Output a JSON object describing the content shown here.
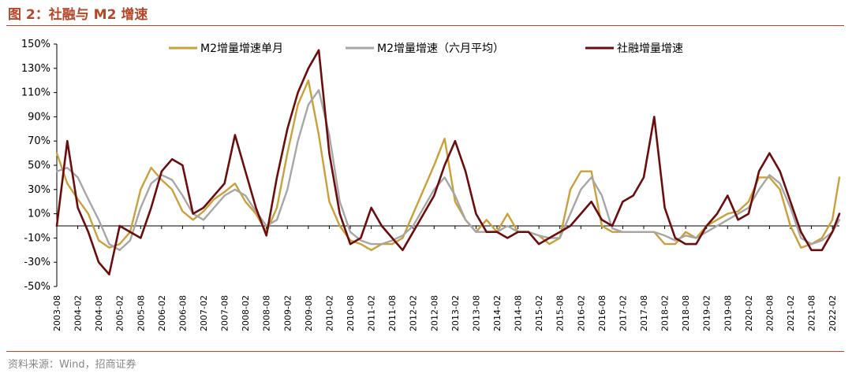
{
  "header": {
    "title": "图 2：社融与 M2 增速"
  },
  "footer": {
    "source": "资料来源：Wind，招商证券"
  },
  "chart_data": {
    "type": "line",
    "title": "",
    "xlabel": "",
    "ylabel": "",
    "ylim": [
      -50,
      150
    ],
    "yticks": [
      "150%",
      "130%",
      "110%",
      "90%",
      "70%",
      "50%",
      "30%",
      "10%",
      "-10%",
      "-30%",
      "-50%"
    ],
    "legend_position": "top",
    "grid": false,
    "xticks": [
      "2003-08",
      "2004-02",
      "2004-08",
      "2005-02",
      "2005-08",
      "2006-02",
      "2006-08",
      "2007-02",
      "2007-08",
      "2008-02",
      "2008-08",
      "2009-02",
      "2009-08",
      "2010-02",
      "2010-08",
      "2011-02",
      "2011-08",
      "2012-02",
      "2012-08",
      "2013-02",
      "2013-08",
      "2014-02",
      "2014-08",
      "2015-02",
      "2015-08",
      "2016-02",
      "2016-08",
      "2017-02",
      "2017-08",
      "2018-02",
      "2018-08",
      "2019-02",
      "2019-08",
      "2020-02",
      "2020-08",
      "2021-02",
      "2021-08",
      "2022-02"
    ],
    "x": [
      "2003-08",
      "2003-11",
      "2004-02",
      "2004-05",
      "2004-08",
      "2004-11",
      "2005-02",
      "2005-05",
      "2005-08",
      "2005-11",
      "2006-02",
      "2006-05",
      "2006-08",
      "2006-11",
      "2007-02",
      "2007-05",
      "2007-08",
      "2007-11",
      "2008-02",
      "2008-05",
      "2008-08",
      "2008-11",
      "2009-02",
      "2009-05",
      "2009-08",
      "2009-11",
      "2010-02",
      "2010-05",
      "2010-08",
      "2010-11",
      "2011-02",
      "2011-05",
      "2011-08",
      "2011-11",
      "2012-02",
      "2012-05",
      "2012-08",
      "2012-11",
      "2013-02",
      "2013-05",
      "2013-08",
      "2013-11",
      "2014-02",
      "2014-05",
      "2014-08",
      "2014-11",
      "2015-02",
      "2015-05",
      "2015-08",
      "2015-11",
      "2016-02",
      "2016-05",
      "2016-08",
      "2016-11",
      "2017-02",
      "2017-05",
      "2017-08",
      "2017-11",
      "2018-02",
      "2018-05",
      "2018-08",
      "2018-11",
      "2019-02",
      "2019-05",
      "2019-08",
      "2019-11",
      "2020-02",
      "2020-05",
      "2020-08",
      "2020-11",
      "2021-02",
      "2021-05",
      "2021-08",
      "2021-11",
      "2022-02",
      "2022-04"
    ],
    "series": [
      {
        "name": "M2增量增速单月",
        "color": "#c9a03a",
        "values": [
          60,
          35,
          22,
          10,
          -12,
          -18,
          -15,
          -5,
          30,
          48,
          38,
          30,
          12,
          5,
          12,
          22,
          28,
          35,
          20,
          10,
          -5,
          15,
          60,
          100,
          120,
          75,
          20,
          0,
          -12,
          -15,
          -20,
          -15,
          -15,
          -10,
          10,
          30,
          50,
          72,
          20,
          5,
          -5,
          5,
          -5,
          10,
          -5,
          -5,
          -8,
          -15,
          -10,
          30,
          45,
          45,
          0,
          -5,
          -5,
          -5,
          -5,
          -5,
          -15,
          -15,
          -5,
          -10,
          0,
          5,
          10,
          12,
          20,
          40,
          40,
          30,
          0,
          -18,
          -15,
          -10,
          5,
          40
        ]
      },
      {
        "name": "M2增量增速（六月平均）",
        "color": "#a6a6a6",
        "values": [
          45,
          48,
          40,
          22,
          5,
          -15,
          -20,
          -12,
          15,
          35,
          42,
          38,
          25,
          10,
          5,
          15,
          25,
          30,
          25,
          12,
          0,
          5,
          30,
          70,
          100,
          112,
          75,
          20,
          -5,
          -12,
          -15,
          -15,
          -12,
          -8,
          0,
          15,
          30,
          40,
          25,
          5,
          -5,
          -5,
          -5,
          0,
          -5,
          -5,
          -8,
          -10,
          -10,
          10,
          30,
          40,
          25,
          -2,
          -5,
          -5,
          -5,
          -5,
          -8,
          -12,
          -8,
          -10,
          -5,
          0,
          5,
          10,
          15,
          30,
          42,
          35,
          15,
          -10,
          -15,
          -12,
          -5,
          5
        ]
      },
      {
        "name": "社融增量增速",
        "color": "#6b0d0d",
        "values": [
          0,
          70,
          15,
          -5,
          -30,
          -40,
          0,
          -5,
          -10,
          15,
          45,
          55,
          50,
          10,
          15,
          25,
          35,
          75,
          45,
          15,
          -8,
          40,
          80,
          110,
          130,
          145,
          60,
          10,
          -15,
          -10,
          15,
          0,
          -10,
          -20,
          -5,
          10,
          25,
          50,
          70,
          45,
          10,
          -5,
          -5,
          -10,
          -5,
          -5,
          -15,
          -10,
          -5,
          0,
          10,
          20,
          5,
          0,
          20,
          25,
          40,
          90,
          15,
          -10,
          -15,
          -15,
          0,
          10,
          25,
          5,
          10,
          45,
          60,
          45,
          20,
          -5,
          -20,
          -20,
          -5,
          10
        ]
      }
    ]
  }
}
